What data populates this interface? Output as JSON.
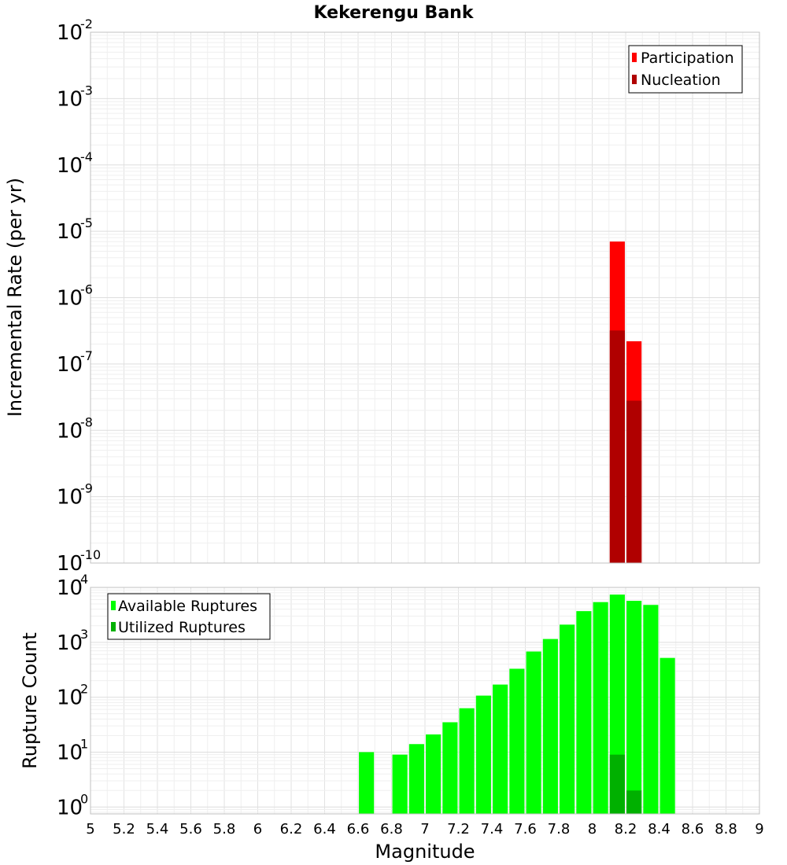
{
  "title": "Kekerengu Bank",
  "colors": {
    "participation": "#ff0000",
    "nucleation": "#b00000",
    "available": "#00ff00",
    "utilized": "#00b000"
  },
  "chart_data": [
    {
      "type": "bar",
      "ylabel": "Incremental Rate (per yr)",
      "yscale": "log",
      "ylim": [
        1e-10,
        0.01
      ],
      "y_ticks": [
        {
          "base": "10",
          "exp": "-2",
          "value": 0.01
        },
        {
          "base": "10",
          "exp": "-3",
          "value": 0.001
        },
        {
          "base": "10",
          "exp": "-4",
          "value": 0.0001
        },
        {
          "base": "10",
          "exp": "-5",
          "value": 1e-05
        },
        {
          "base": "10",
          "exp": "-6",
          "value": 1e-06
        },
        {
          "base": "10",
          "exp": "-7",
          "value": 1e-07
        },
        {
          "base": "10",
          "exp": "-8",
          "value": 1e-08
        },
        {
          "base": "10",
          "exp": "-9",
          "value": 1e-09
        },
        {
          "base": "10",
          "exp": "-10",
          "value": 1e-10
        }
      ],
      "xlim": [
        5,
        9
      ],
      "legend": {
        "position": "top-right",
        "entries": [
          "Participation",
          "Nucleation"
        ]
      },
      "series": [
        {
          "name": "Participation",
          "x": [
            8.15,
            8.25
          ],
          "values": [
            7e-06,
            2.2e-07
          ]
        },
        {
          "name": "Nucleation",
          "x": [
            8.15,
            8.25
          ],
          "values": [
            3.2e-07,
            2.8e-08
          ]
        }
      ]
    },
    {
      "type": "bar",
      "ylabel": "Rupture Count",
      "xlabel": "Magnitude",
      "yscale": "log",
      "ylim": [
        0.75,
        10000
      ],
      "y_ticks": [
        {
          "base": "10",
          "exp": "4",
          "value": 10000
        },
        {
          "base": "10",
          "exp": "3",
          "value": 1000
        },
        {
          "base": "10",
          "exp": "2",
          "value": 100
        },
        {
          "base": "10",
          "exp": "1",
          "value": 10
        },
        {
          "base": "10",
          "exp": "0",
          "value": 1
        }
      ],
      "xlim": [
        5,
        9
      ],
      "x_ticks": [
        "5",
        "5.2",
        "5.4",
        "5.6",
        "5.8",
        "6",
        "6.2",
        "6.4",
        "6.6",
        "6.8",
        "7",
        "7.2",
        "7.4",
        "7.6",
        "7.8",
        "8",
        "8.2",
        "8.4",
        "8.6",
        "8.8",
        "9"
      ],
      "legend": {
        "position": "top-left",
        "entries": [
          "Available Ruptures",
          "Utilized Ruptures"
        ]
      },
      "series": [
        {
          "name": "Available Ruptures",
          "x": [
            6.65,
            6.85,
            6.95,
            7.05,
            7.15,
            7.25,
            7.35,
            7.45,
            7.55,
            7.65,
            7.75,
            7.85,
            7.95,
            8.05,
            8.15,
            8.25,
            8.35,
            8.45
          ],
          "values": [
            10,
            9,
            14,
            21,
            35,
            63,
            107,
            170,
            330,
            680,
            1150,
            2100,
            3700,
            5400,
            7400,
            5700,
            4800,
            520
          ]
        },
        {
          "name": "Utilized Ruptures",
          "x": [
            8.15,
            8.25
          ],
          "values": [
            9,
            2
          ]
        }
      ]
    }
  ]
}
